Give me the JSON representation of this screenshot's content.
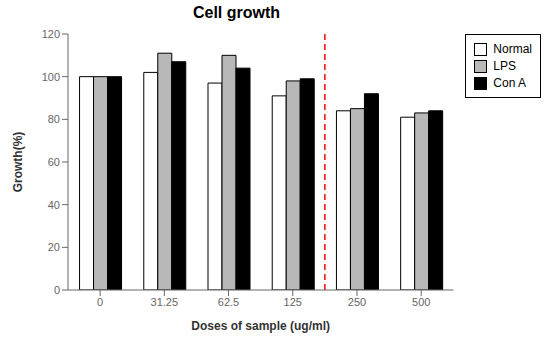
{
  "chart_data": {
    "type": "bar",
    "title": "Cell growth",
    "xlabel": "Doses of sample (ug/ml)",
    "ylabel": "Growth(%)",
    "categories": [
      "0",
      "31.25",
      "62.5",
      "125",
      "250",
      "500"
    ],
    "series": [
      {
        "name": "Normal",
        "color": "white",
        "values": [
          100,
          102,
          97,
          91,
          84,
          81
        ]
      },
      {
        "name": "LPS",
        "color": "#b8b8b8",
        "values": [
          100,
          111,
          110,
          98,
          85,
          83
        ]
      },
      {
        "name": "Con A",
        "color": "black",
        "values": [
          100,
          107,
          104,
          99,
          92,
          84
        ]
      }
    ],
    "ylim": [
      0,
      120
    ],
    "yticks": [
      0,
      20,
      40,
      60,
      80,
      100,
      120
    ],
    "grid": false,
    "legend": "right",
    "annotations": [
      {
        "type": "vline",
        "between": [
          "125",
          "250"
        ],
        "color": "red",
        "line_style": "dashed"
      }
    ]
  }
}
